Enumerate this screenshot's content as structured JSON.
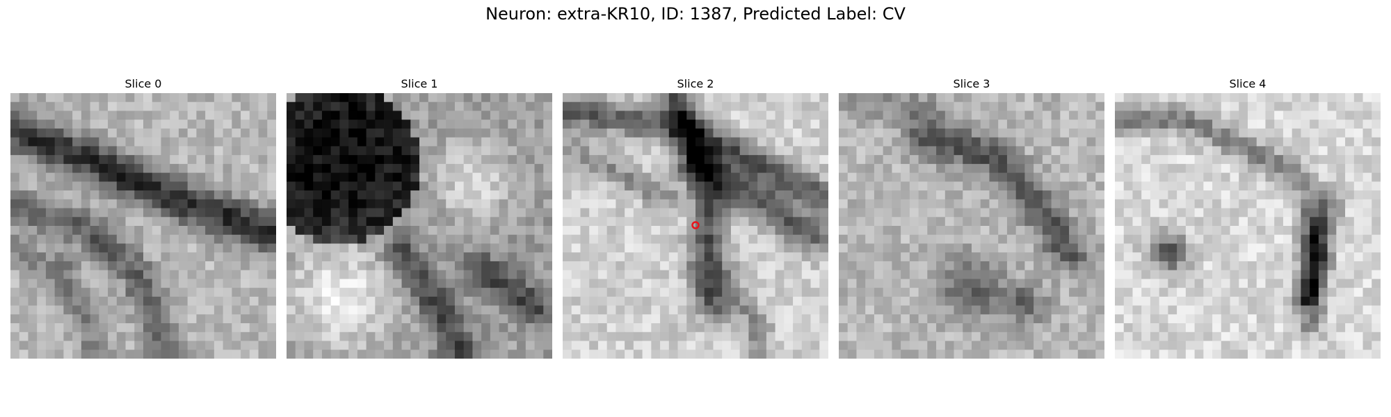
{
  "figure": {
    "title": "Neuron: extra-KR10, ID: 1387, Predicted Label: CV"
  },
  "panels": [
    {
      "title": "Slice 0",
      "pattern": "diagonal-band"
    },
    {
      "title": "Slice 1",
      "pattern": "dark-blob"
    },
    {
      "title": "Slice 2",
      "pattern": "crossing-band",
      "marker": true
    },
    {
      "title": "Slice 3",
      "pattern": "speckled"
    },
    {
      "title": "Slice 4",
      "pattern": "arc"
    }
  ],
  "colors": {
    "marker": "#e8141c",
    "grayscale": "binary"
  }
}
